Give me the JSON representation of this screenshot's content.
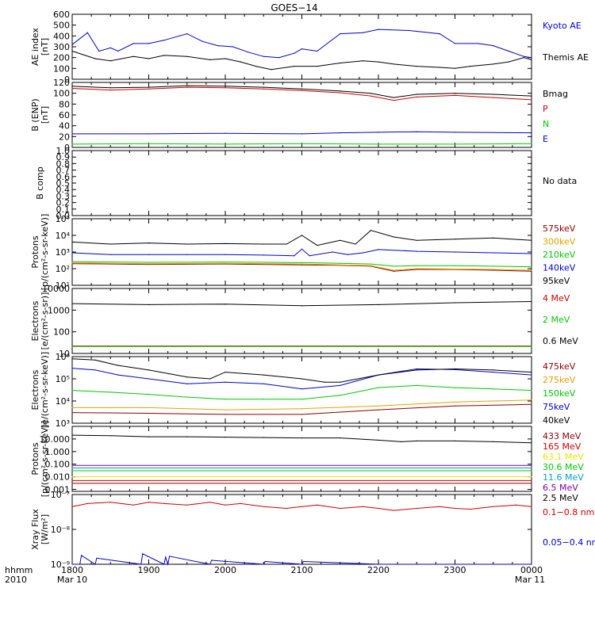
{
  "title": "GOES−14",
  "colors": {
    "black": "#000000",
    "red": "#cc0000",
    "green": "#00c800",
    "blue": "#0000cc",
    "orange": "#e8a000",
    "brown": "#8b0000",
    "cyan": "#00a0c8",
    "purple": "#8000a0",
    "yellow": "#e6e600",
    "darkred": "#b00000"
  },
  "x_axis": {
    "tick_labels": [
      "1800",
      "1900",
      "2000",
      "2100",
      "2200",
      "2300",
      "0000"
    ],
    "sub_left": "Mar 10",
    "sub_right": "Mar 11",
    "left_label_1": "hhmm",
    "left_label_2": "2010"
  },
  "chart_data": [
    {
      "type": "line",
      "id": "ae",
      "ylabel": "AE index\n[nT]",
      "scale": "linear",
      "ylim": [
        0,
        600
      ],
      "ticks": [
        0,
        100,
        200,
        300,
        400,
        500,
        600
      ],
      "tick_labels": [
        "0",
        "100",
        "200",
        "300",
        "400",
        "500",
        "600"
      ],
      "series": [
        {
          "name": "Kyoto AE",
          "color": "#0000cc",
          "x": [
            0,
            0.2,
            0.35,
            0.5,
            0.6,
            0.8,
            1.0,
            1.2,
            1.4,
            1.5,
            1.7,
            1.9,
            2.1,
            2.3,
            2.5,
            2.7,
            2.9,
            3.0,
            3.2,
            3.5,
            3.8,
            4.0,
            4.4,
            4.8,
            5.0,
            5.3,
            5.5,
            5.7,
            5.9,
            6.0
          ],
          "y": [
            320,
            430,
            260,
            290,
            260,
            330,
            330,
            360,
            400,
            420,
            350,
            310,
            300,
            250,
            210,
            200,
            240,
            280,
            260,
            420,
            430,
            460,
            450,
            420,
            330,
            330,
            310,
            260,
            210,
            200
          ]
        },
        {
          "name": "Themis AE",
          "color": "#000000",
          "x": [
            0,
            0.3,
            0.5,
            0.8,
            1.0,
            1.2,
            1.5,
            1.8,
            2.0,
            2.2,
            2.4,
            2.6,
            2.9,
            3.2,
            3.5,
            3.8,
            4.0,
            4.2,
            4.5,
            4.8,
            5.0,
            5.2,
            5.5,
            5.7,
            5.9,
            6.0
          ],
          "y": [
            260,
            190,
            170,
            210,
            190,
            220,
            210,
            180,
            190,
            160,
            120,
            90,
            120,
            120,
            150,
            170,
            160,
            140,
            120,
            110,
            100,
            120,
            140,
            160,
            200,
            180
          ]
        }
      ]
    },
    {
      "type": "line",
      "id": "bfield",
      "ylabel": "B (ENP)\n[nT]",
      "scale": "linear",
      "ylim": [
        0,
        120
      ],
      "ticks": [
        0,
        20,
        40,
        60,
        80,
        100,
        120
      ],
      "tick_labels": [
        "0",
        "20",
        "40",
        "60",
        "80",
        "100",
        "120"
      ],
      "series": [
        {
          "name": "Bmag",
          "color": "#000000",
          "x": [
            0,
            0.5,
            1.0,
            1.5,
            2.0,
            2.5,
            3.0,
            3.5,
            3.9,
            4.2,
            4.5,
            5.0,
            5.5,
            6.0
          ],
          "y": [
            113,
            110,
            111,
            114,
            113,
            111,
            108,
            104,
            100,
            92,
            98,
            100,
            98,
            95
          ]
        },
        {
          "name": "P",
          "color": "#cc0000",
          "x": [
            0,
            0.5,
            1.0,
            1.5,
            2.0,
            2.5,
            3.0,
            3.5,
            3.9,
            4.2,
            4.5,
            5.0,
            5.5,
            6.0
          ],
          "y": [
            109,
            106,
            108,
            111,
            110,
            108,
            105,
            101,
            95,
            87,
            93,
            96,
            92,
            88
          ]
        },
        {
          "name": "N",
          "color": "#00c800",
          "x": [
            0,
            1.0,
            2.0,
            3.0,
            4.0,
            5.0,
            6.0
          ],
          "y": [
            6,
            7,
            6,
            7,
            6,
            6,
            7
          ]
        },
        {
          "name": "E",
          "color": "#0000cc",
          "x": [
            0,
            1.0,
            2.0,
            3.0,
            3.5,
            4.0,
            4.5,
            5.0,
            6.0
          ],
          "y": [
            25,
            25,
            26,
            25,
            27,
            28,
            29,
            28,
            27
          ]
        }
      ]
    },
    {
      "type": "line",
      "id": "bcomp",
      "ylabel": "B comp",
      "scale": "linear",
      "ylim": [
        0,
        1
      ],
      "ticks": [
        0,
        0.1,
        0.2,
        0.3,
        0.4,
        0.5,
        0.6,
        0.7,
        0.8,
        0.9,
        1.0
      ],
      "tick_labels": [
        "0.0",
        "0.1",
        "0.2",
        "0.3",
        "0.4",
        "0.5",
        "0.6",
        "0.7",
        "0.8",
        "0.9",
        "1.0"
      ],
      "series": [
        {
          "name": "No data",
          "color": "#000000",
          "x": [],
          "y": []
        }
      ]
    },
    {
      "type": "line",
      "id": "protons_kev",
      "ylabel": "Protons\n[p/(cm²-s-sr-keV)]",
      "scale": "log",
      "ylim": [
        10,
        100000
      ],
      "ticks": [
        10,
        100,
        1000,
        10000,
        100000
      ],
      "tick_labels": [
        "10¹",
        "10²",
        "10³",
        "10⁴",
        "10⁵"
      ],
      "series": [
        {
          "name": "575keV",
          "color": "#8b0000",
          "x": [
            0,
            1,
            2,
            3,
            3.5,
            3.9,
            4.2,
            4.5,
            5,
            5.5,
            6
          ],
          "y": [
            200,
            180,
            190,
            170,
            160,
            140,
            70,
            90,
            90,
            80,
            70
          ]
        },
        {
          "name": "300keV",
          "color": "#e8a000",
          "x": [
            0,
            1,
            2,
            3,
            3.5,
            3.9,
            4.2,
            4.5,
            5,
            5.5,
            6
          ],
          "y": [
            220,
            200,
            210,
            190,
            170,
            150,
            80,
            100,
            95,
            90,
            80
          ]
        },
        {
          "name": "210keV",
          "color": "#00c800",
          "x": [
            0,
            1,
            2,
            3,
            3.5,
            3.9,
            4.2,
            4.5,
            5,
            5.5,
            6
          ],
          "y": [
            260,
            240,
            250,
            230,
            210,
            190,
            140,
            150,
            150,
            140,
            130
          ]
        },
        {
          "name": "140keV",
          "color": "#0000cc",
          "x": [
            0,
            0.5,
            1,
            1.5,
            2,
            2.5,
            2.9,
            3.0,
            3.1,
            3.4,
            3.6,
            3.8,
            4.0,
            4.5,
            5,
            5.5,
            6
          ],
          "y": [
            900,
            700,
            700,
            700,
            700,
            650,
            600,
            1500,
            600,
            1000,
            700,
            900,
            1400,
            1100,
            1000,
            900,
            800
          ]
        },
        {
          "name": "95keV",
          "color": "#000000",
          "x": [
            0,
            0.5,
            1,
            1.5,
            2,
            2.5,
            2.8,
            3.0,
            3.2,
            3.5,
            3.7,
            3.9,
            4.2,
            4.5,
            5,
            5.5,
            6
          ],
          "y": [
            4000,
            3000,
            3500,
            3000,
            3200,
            3000,
            3000,
            10000,
            2500,
            5000,
            3000,
            20000,
            8000,
            5000,
            6000,
            7000,
            5000
          ]
        }
      ]
    },
    {
      "type": "line",
      "id": "electrons_mev",
      "ylabel": "Electrons\n[e/(cm²-s-sr)]",
      "scale": "log",
      "ylim": [
        10,
        10000
      ],
      "ticks": [
        10,
        100,
        1000,
        10000
      ],
      "tick_labels": [
        "10",
        "100",
        "1000",
        "10000"
      ],
      "series": [
        {
          "name": "4 MeV",
          "color": "#cc0000",
          "x": [
            0,
            6
          ],
          "y": [
            22,
            22
          ]
        },
        {
          "name": "2 MeV",
          "color": "#00c800",
          "x": [
            0,
            6
          ],
          "y": [
            21,
            21
          ]
        },
        {
          "name": "0.6 MeV",
          "color": "#000000",
          "x": [
            0,
            1,
            2,
            3,
            4,
            5,
            6
          ],
          "y": [
            2000,
            1800,
            1900,
            1600,
            1800,
            2200,
            2500
          ]
        }
      ]
    },
    {
      "type": "line",
      "id": "electrons_kev",
      "ylabel": "Electrons\n[e/(cm²-s-sr-keV)]",
      "scale": "log",
      "ylim": [
        1000,
        1000000
      ],
      "ticks": [
        1000,
        10000,
        100000,
        1000000
      ],
      "tick_labels": [
        "10³",
        "10⁴",
        "10⁵",
        "10⁶"
      ],
      "series": [
        {
          "name": "475keV",
          "color": "#8b0000",
          "x": [
            0,
            1,
            2,
            3,
            4,
            5,
            6
          ],
          "y": [
            3000,
            2800,
            2500,
            2500,
            4000,
            6000,
            7000
          ]
        },
        {
          "name": "275keV",
          "color": "#e8a000",
          "x": [
            0,
            1,
            2,
            3,
            4,
            5,
            6
          ],
          "y": [
            5000,
            5000,
            4000,
            4500,
            6000,
            9000,
            11000
          ]
        },
        {
          "name": "150keV",
          "color": "#00c800",
          "x": [
            0,
            0.5,
            1,
            1.5,
            2,
            2.5,
            3,
            3.5,
            4,
            4.5,
            5,
            5.5,
            6
          ],
          "y": [
            30000,
            25000,
            20000,
            15000,
            12000,
            12000,
            12000,
            18000,
            40000,
            50000,
            40000,
            35000,
            30000
          ]
        },
        {
          "name": "75keV",
          "color": "#0000cc",
          "x": [
            0,
            0.3,
            0.6,
            1,
            1.5,
            2,
            2.5,
            3,
            3.5,
            4,
            4.5,
            5,
            5.5,
            6
          ],
          "y": [
            300000,
            250000,
            150000,
            100000,
            60000,
            70000,
            60000,
            35000,
            50000,
            150000,
            280000,
            260000,
            200000,
            150000
          ]
        },
        {
          "name": "40keV",
          "color": "#000000",
          "x": [
            0,
            0.3,
            0.6,
            1,
            1.5,
            1.8,
            2,
            2.5,
            3,
            3.3,
            3.5,
            4,
            4.5,
            5,
            5.5,
            6
          ],
          "y": [
            800000,
            700000,
            400000,
            250000,
            120000,
            100000,
            200000,
            150000,
            100000,
            70000,
            70000,
            150000,
            250000,
            280000,
            250000,
            200000
          ]
        }
      ]
    },
    {
      "type": "line",
      "id": "protons_mev",
      "ylabel": "Protons\n[p/(cm²-s-sr-keV)]",
      "scale": "log",
      "ylim": [
        0.0007,
        100
      ],
      "ticks": [
        0.001,
        0.01,
        0.1,
        1,
        10
      ],
      "tick_labels": [
        "0.001",
        "0.010",
        "0.100",
        "1.000",
        "10.000"
      ],
      "series": [
        {
          "name": "433 MeV",
          "color": "#8b0000",
          "x": [
            0,
            6
          ],
          "y": [
            0.003,
            0.003
          ]
        },
        {
          "name": "165 MeV",
          "color": "#cc0000",
          "x": [
            0,
            6
          ],
          "y": [
            0.005,
            0.005
          ]
        },
        {
          "name": "63.1 MeV",
          "color": "#e6e600",
          "x": [
            0,
            6
          ],
          "y": [
            0.01,
            0.01
          ]
        },
        {
          "name": "30.6 MeV",
          "color": "#00c800",
          "x": [
            0,
            6
          ],
          "y": [
            0.03,
            0.03
          ]
        },
        {
          "name": "11.6 MeV",
          "color": "#00a0c8",
          "x": [
            0,
            6
          ],
          "y": [
            0.05,
            0.05
          ]
        },
        {
          "name": "6.5 MeV",
          "color": "#8000a0",
          "x": [
            0,
            6
          ],
          "y": [
            0.08,
            0.08
          ]
        },
        {
          "name": "2.5 MeV",
          "color": "#000000",
          "x": [
            0,
            0.5,
            1,
            1.5,
            2,
            2.5,
            3,
            3.5,
            4,
            4.3,
            4.5,
            5,
            5.5,
            6
          ],
          "y": [
            20,
            18,
            15,
            15,
            14,
            13,
            12,
            12,
            8,
            6,
            7,
            7,
            6,
            5
          ]
        }
      ]
    },
    {
      "type": "line",
      "id": "xray",
      "ylabel": "Xray Flux\n[W/m²]",
      "scale": "log",
      "ylim": [
        1e-09,
        1e-07
      ],
      "ticks": [
        1e-09,
        1e-08,
        1e-07
      ],
      "tick_labels": [
        "10⁻⁹",
        "10⁻⁸",
        "10⁻⁷"
      ],
      "series": [
        {
          "name": "0.1−0.8 nm",
          "color": "#cc0000",
          "x": [
            0,
            0.2,
            0.5,
            0.8,
            1,
            1.2,
            1.5,
            1.8,
            2,
            2.2,
            2.5,
            2.8,
            3,
            3.2,
            3.5,
            3.8,
            4,
            4.2,
            4.5,
            4.8,
            5,
            5.2,
            5.5,
            5.8,
            6
          ],
          "y": [
            4.5e-08,
            5.5e-08,
            6e-08,
            5e-08,
            6e-08,
            5.5e-08,
            5e-08,
            6e-08,
            5e-08,
            5.5e-08,
            4.5e-08,
            4e-08,
            4.5e-08,
            5e-08,
            4e-08,
            4.5e-08,
            4e-08,
            3.5e-08,
            4e-08,
            4.5e-08,
            4e-08,
            3.8e-08,
            4.5e-08,
            5e-08,
            4.5e-08
          ]
        },
        {
          "name": "0.05−0.4 nm",
          "color": "#0000cc",
          "x": [
            0,
            0.1,
            0.12,
            0.3,
            0.32,
            0.9,
            0.92,
            1.2,
            1.22,
            1.25,
            1.27,
            1.8,
            1.82,
            2.5,
            2.52,
            3.0,
            3.02,
            4.0,
            6.0
          ],
          "y": [
            1e-09,
            1e-09,
            1.8e-09,
            1e-09,
            1.5e-09,
            1e-09,
            2e-09,
            1e-09,
            1.6e-09,
            1e-09,
            1.7e-09,
            1e-09,
            1.3e-09,
            1e-09,
            1.2e-09,
            1e-09,
            1.2e-09,
            1e-09,
            1e-09
          ]
        }
      ]
    }
  ]
}
